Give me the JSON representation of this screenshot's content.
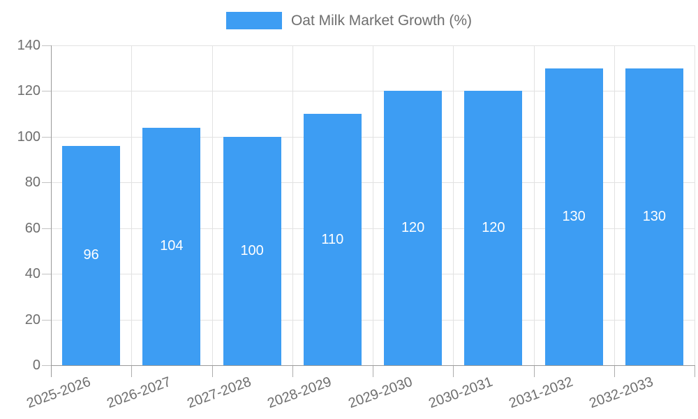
{
  "legend": {
    "series_label": "Oat Milk Market Growth (%)"
  },
  "chart_data": {
    "type": "bar",
    "title": "Oat Milk Market Growth (%)",
    "categories": [
      "2025-2026",
      "2026-2027",
      "2027-2028",
      "2028-2029",
      "2029-2030",
      "2030-2031",
      "2031-2032",
      "2032-2033"
    ],
    "values": [
      96,
      104,
      100,
      110,
      120,
      120,
      130,
      130
    ],
    "xlabel": "",
    "ylabel": "",
    "ylim": [
      0,
      140
    ],
    "yticks": [
      0,
      20,
      40,
      60,
      80,
      100,
      120,
      140
    ],
    "grid": true,
    "legend_position": "top-center",
    "x_label_rotation_deg": -20,
    "colors": {
      "bar": "#3D9DF3",
      "grid": "#E2E2E2",
      "axis": "#9A9A9A",
      "y_tick": "#C2C2C2",
      "x_tick": "#ADADAD",
      "text": "#6E6E6E",
      "value_label": "#FFFFFF",
      "background": "#FFFFFF"
    }
  }
}
